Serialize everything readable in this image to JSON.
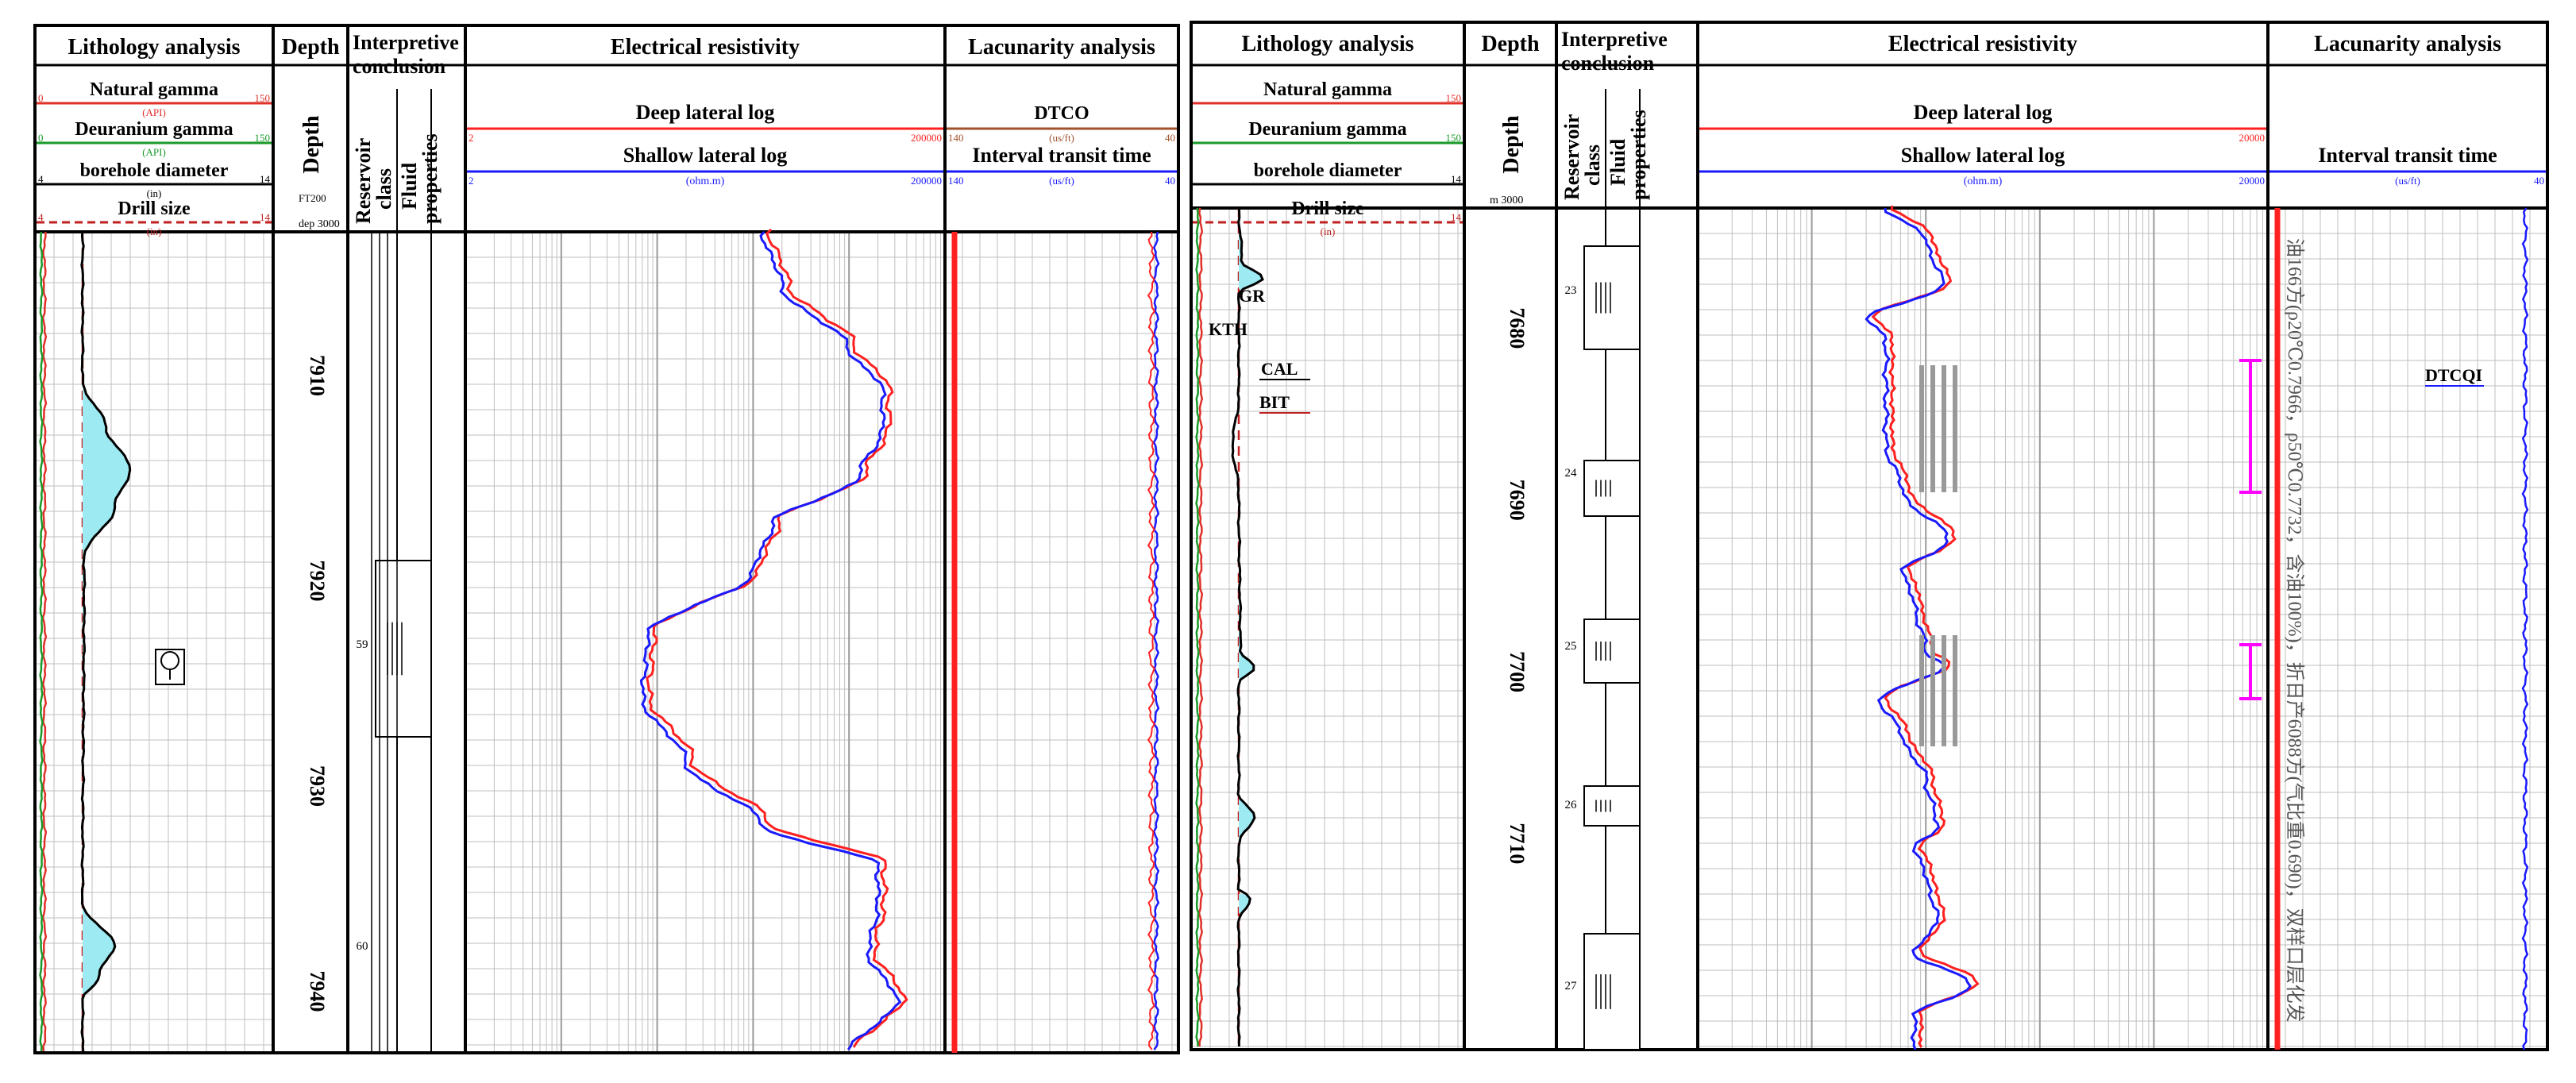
{
  "colors": {
    "gamma": "#e0302a",
    "uranium": "#1a9a2a",
    "caliper": "#000000",
    "bit": "#c02020",
    "deep": "#ff2020",
    "shallow": "#1a1aff",
    "dtco": "#a0522d",
    "fill": "#9eeaf2",
    "grid": "#bfbfbf",
    "magenta": "#ff00ff"
  },
  "chart_data": [
    {
      "type": "line",
      "title": "",
      "headers": {
        "lithology": "Lithology analysis",
        "depth": "Depth",
        "interp": "Interpretive conclusion",
        "resistivity": "Electrical resistivity",
        "lacunarity": "Lacunarity analysis",
        "reservoir": "Reservoir class",
        "fluid": "Fluid properties"
      },
      "curves": {
        "gr": {
          "label": "Natural gamma",
          "unit": "(API)",
          "min": "0",
          "max": "150"
        },
        "kth": {
          "label": "Deuranium gamma",
          "unit": "(API)",
          "min": "0",
          "max": "150"
        },
        "cal": {
          "label": "borehole diameter",
          "unit": "(in)",
          "min": "4",
          "max": "14"
        },
        "bit": {
          "label": "Drill size",
          "unit": "(in)",
          "min": "4",
          "max": "14"
        },
        "lld": {
          "label": "Deep lateral log",
          "unit": "(ohm.m)",
          "min": "2",
          "max": "200000"
        },
        "lls": {
          "label": "Shallow lateral log",
          "unit": "(ohm.m)",
          "min": "2",
          "max": "200000"
        },
        "dtco": {
          "label": "DTCO",
          "unit": "(us/ft)",
          "min": "140",
          "max": "40"
        },
        "dt": {
          "label": "Interval transit time",
          "unit": "(us/ft)",
          "min": "140",
          "max": "40"
        }
      },
      "depth_track": {
        "label": "Depth",
        "scale": "FT200",
        "range": "dep 3000"
      },
      "depth_ticks": [
        "7910",
        "7920",
        "7930",
        "7940"
      ],
      "reservoir_numbers": [
        "59",
        "60"
      ],
      "depth_range_ft": [
        7903,
        7943
      ]
    },
    {
      "type": "line",
      "title": "",
      "headers": {
        "lithology": "Lithology analysis",
        "depth": "Depth",
        "interp": "Interpretive conclusion",
        "resistivity": "Electrical resistivity",
        "lacunarity": "Lacunarity analysis",
        "reservoir": "Reservoir class",
        "fluid": "Fluid properties"
      },
      "curves": {
        "gr": {
          "label": "Natural gamma",
          "max": "150"
        },
        "kth": {
          "label": "Deuranium gamma",
          "max": "150"
        },
        "cal": {
          "label": "borehole diameter",
          "max": "14"
        },
        "bit": {
          "label": "Drill size",
          "unit": "(in)",
          "max": "14"
        },
        "lld": {
          "label": "Deep lateral log",
          "max": "20000"
        },
        "lls": {
          "label": "Shallow lateral log",
          "unit": "(ohm.m)",
          "max": "20000"
        },
        "dt": {
          "label": "Interval transit time",
          "unit": "(us/ft)",
          "max": "40"
        }
      },
      "depth_track": {
        "label": "Depth",
        "range": "m 3000"
      },
      "depth_ticks": [
        "7680",
        "7690",
        "7700",
        "7710"
      ],
      "reservoir_numbers": [
        "23",
        "24",
        "25",
        "26",
        "27"
      ],
      "inline_labels": [
        "GR",
        "KTH",
        "CAL",
        "BIT",
        "DTCQI"
      ],
      "annotation_text": "油166方(ρ20℃0.7966，ρ50℃0.7732，含油100%)，折日产6088方(气比重0.690)，双样口层化发",
      "depth_range_ft": [
        7673,
        7722
      ]
    }
  ]
}
